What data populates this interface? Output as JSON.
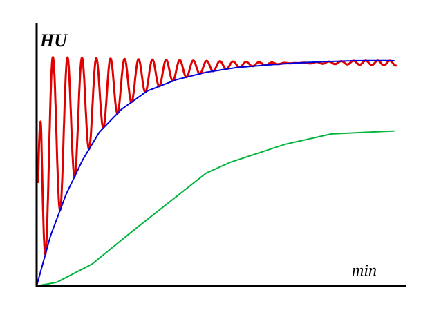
{
  "chart_data": {
    "type": "line",
    "title": "",
    "xlabel": "min",
    "ylabel": "HU",
    "xlim": [
      0,
      10
    ],
    "ylim": [
      0,
      1.0
    ],
    "grid": false,
    "legend": "none",
    "x_ticks": [],
    "y_ticks": [],
    "series": [
      {
        "color": "#0000dd",
        "style": "smooth",
        "x": [
          0,
          0.38,
          0.8,
          1.25,
          1.7,
          2.3,
          3,
          3.8,
          4.6,
          5.4,
          6.2,
          7,
          7.8,
          8.6,
          9.3,
          9.7
        ],
        "y": [
          0,
          0.22,
          0.4,
          0.55,
          0.67,
          0.77,
          0.85,
          0.9,
          0.932,
          0.952,
          0.963,
          0.972,
          0.978,
          0.982,
          0.983,
          0.982
        ]
      },
      {
        "color": "#00b43c",
        "style": "polyline",
        "x": [
          0,
          0.55,
          1.5,
          2.65,
          4.6,
          5.25,
          6.75,
          8.0,
          9.7
        ],
        "y": [
          0,
          0.016,
          0.095,
          0.245,
          0.492,
          0.539,
          0.618,
          0.663,
          0.676
        ]
      },
      {
        "color": "#e00000",
        "style": "oscillation",
        "description_note": "",
        "x_start": 0.04,
        "x_end": 9.75,
        "upper_envelope": 1.0,
        "lower_envelope_ref": "series.0",
        "cycles": 27,
        "first_period": 0.44,
        "last_period": 0.31
      }
    ]
  }
}
